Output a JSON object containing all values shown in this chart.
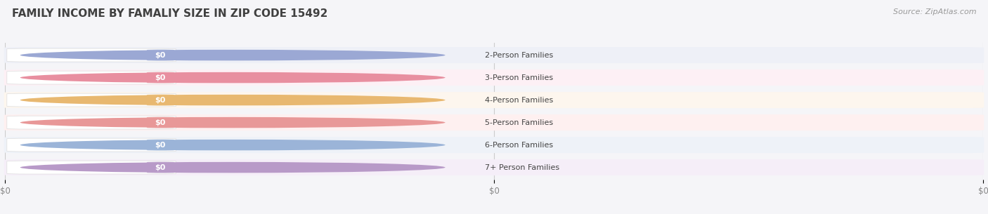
{
  "title": "FAMILY INCOME BY FAMALIY SIZE IN ZIP CODE 15492",
  "source_text": "Source: ZipAtlas.com",
  "categories": [
    "2-Person Families",
    "3-Person Families",
    "4-Person Families",
    "5-Person Families",
    "6-Person Families",
    "7+ Person Families"
  ],
  "values": [
    0,
    0,
    0,
    0,
    0,
    0
  ],
  "bar_colors": [
    "#9ba8d4",
    "#e88fa0",
    "#e8b870",
    "#e89898",
    "#9bb4d8",
    "#b89ac8"
  ],
  "dot_colors": [
    "#8898c8",
    "#e07888",
    "#d8a050",
    "#d88080",
    "#88a0c8",
    "#a888b8"
  ],
  "row_bg_odd": "#f0f2f8",
  "row_bg_even": "#f8f0f4",
  "bg_color": "#f5f5f8",
  "pill_bg_color": "#ffffff",
  "title_fontsize": 11,
  "source_fontsize": 8,
  "bar_label_fontsize": 8,
  "value_fontsize": 8,
  "xtick_labels": [
    "$0",
    "$0",
    "$0"
  ],
  "figsize": [
    14.06,
    3.05
  ],
  "dpi": 100
}
